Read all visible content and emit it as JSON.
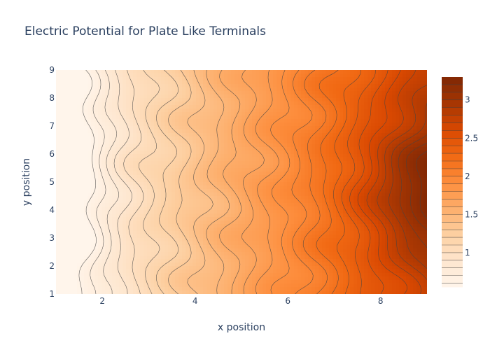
{
  "chart_data": {
    "type": "contour",
    "title": "Electric Potential for Plate Like Terminals",
    "xlabel": "x position",
    "ylabel": "y position",
    "xlim": [
      1,
      9
    ],
    "ylim": [
      1,
      9
    ],
    "x_ticks": [
      2,
      4,
      6,
      8
    ],
    "y_ticks": [
      1,
      2,
      3,
      4,
      5,
      6,
      7,
      8,
      9
    ],
    "z_range": [
      0.55,
      3.3
    ],
    "colorbar_ticks": [
      1,
      1.5,
      2,
      2.5,
      3
    ],
    "colorbar_levels": [
      0.6,
      0.7,
      0.8,
      0.9,
      1.0,
      1.1,
      1.2,
      1.3,
      1.4,
      1.5,
      1.6,
      1.7,
      1.8,
      1.9,
      2.0,
      2.1,
      2.2,
      2.3,
      2.4,
      2.5,
      2.6,
      2.7,
      2.8,
      2.9,
      3.0,
      3.1,
      3.2
    ],
    "colorscale": "Oranges",
    "colorscale_stops": [
      "#fff5eb",
      "#fee6ce",
      "#fdd0a2",
      "#fdae6b",
      "#fd8d3c",
      "#f16913",
      "#d94801",
      "#a63603",
      "#7f2704"
    ],
    "contour_line_color": "#444444",
    "grid": false,
    "legend": "colorbar-right"
  }
}
